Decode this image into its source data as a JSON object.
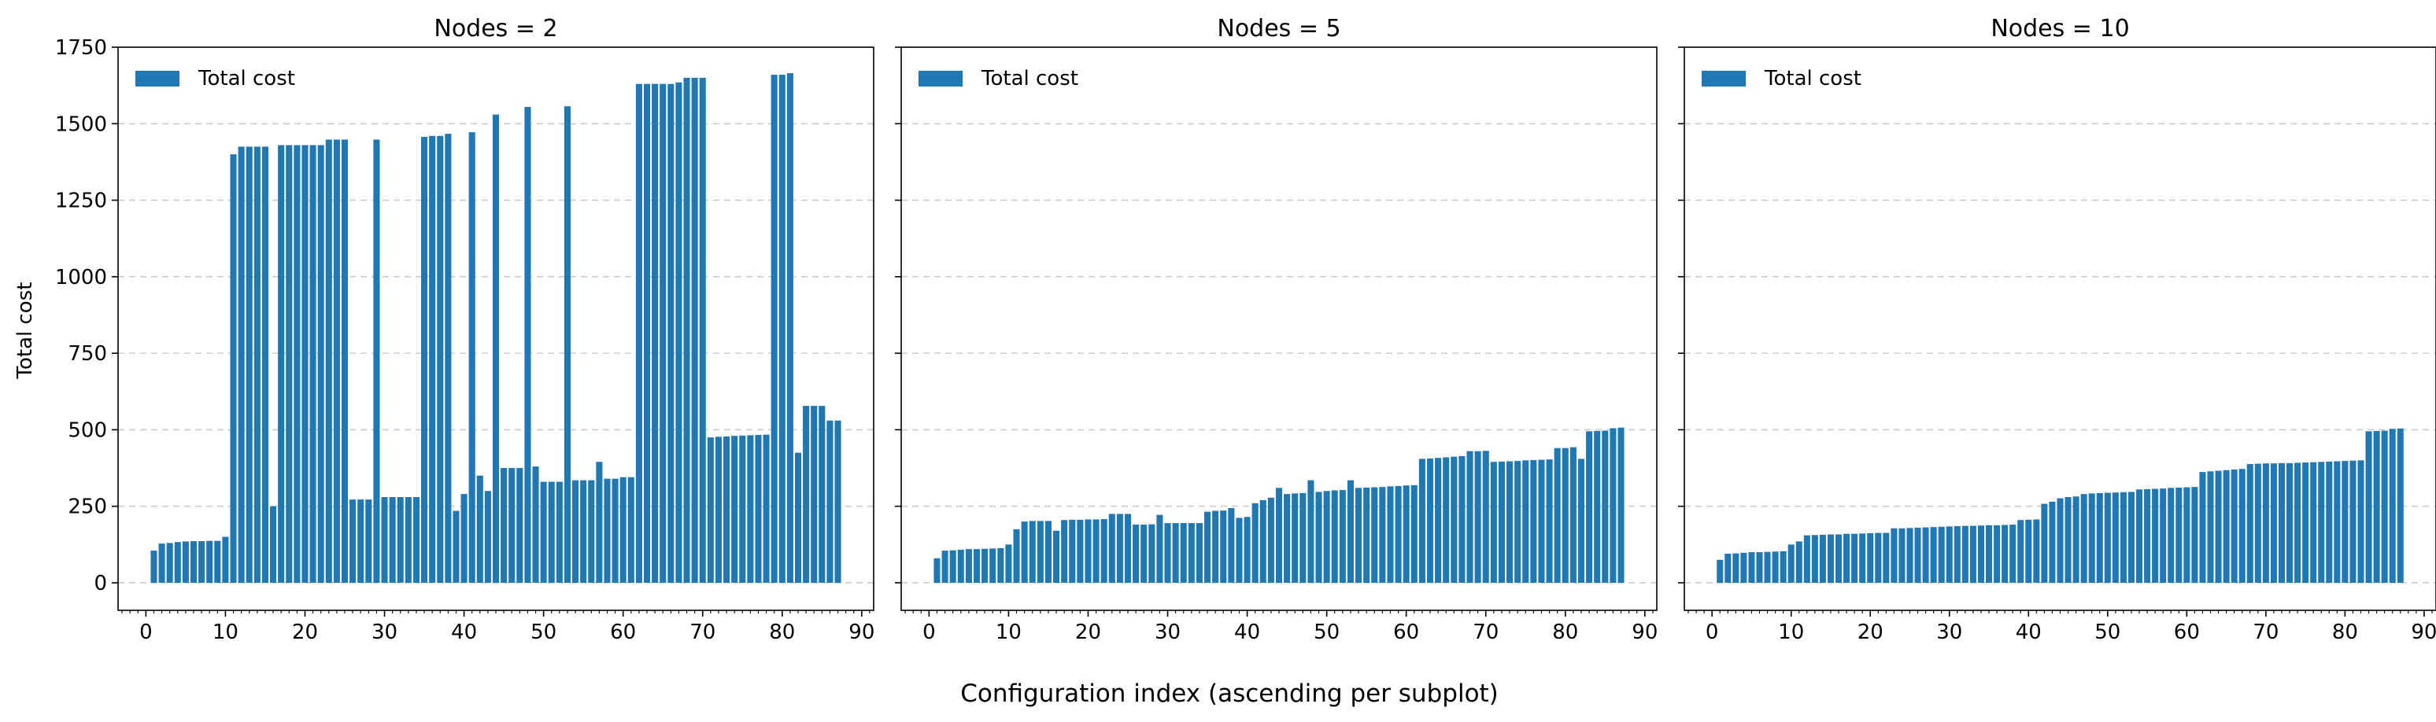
{
  "figure": {
    "xlabel": "Configuration index (ascending per subplot)",
    "ylabel": "Total cost",
    "bar_color": "#1f77b4",
    "grid_color": "#cccccc"
  },
  "chart_data": [
    {
      "type": "bar",
      "title": "Nodes = 2",
      "legend": "Total cost",
      "legend_position": "top-left",
      "grid": "y-dashed",
      "xlim": [
        -3.5,
        91.5
      ],
      "ylim": [
        -90,
        1750
      ],
      "x_ticks": [
        0,
        10,
        20,
        30,
        40,
        50,
        60,
        70,
        80,
        90
      ],
      "y_ticks": [
        0,
        250,
        500,
        750,
        1000,
        1250,
        1500,
        1750
      ],
      "x": [
        1,
        2,
        3,
        4,
        5,
        6,
        7,
        8,
        9,
        10,
        11,
        12,
        13,
        14,
        15,
        16,
        17,
        18,
        19,
        20,
        21,
        22,
        23,
        24,
        25,
        26,
        27,
        28,
        29,
        30,
        31,
        32,
        33,
        34,
        35,
        36,
        37,
        38,
        39,
        40,
        41,
        42,
        43,
        44,
        45,
        46,
        47,
        48,
        49,
        50,
        51,
        52,
        53,
        54,
        55,
        56,
        57,
        58,
        59,
        60,
        61,
        62,
        63,
        64,
        65,
        66,
        67,
        68,
        69,
        70,
        71,
        72,
        73,
        74,
        75,
        76,
        77,
        78,
        79,
        80,
        81,
        82,
        83,
        84,
        85,
        86,
        87
      ],
      "values": [
        105,
        128,
        130,
        133,
        135,
        136,
        136,
        137,
        137,
        150,
        1400,
        1425,
        1425,
        1425,
        1425,
        250,
        1430,
        1430,
        1430,
        1430,
        1430,
        1430,
        1448,
        1448,
        1448,
        272,
        272,
        272,
        1448,
        280,
        280,
        280,
        280,
        280,
        1457,
        1460,
        1460,
        1467,
        235,
        290,
        1472,
        350,
        300,
        1530,
        375,
        375,
        375,
        1555,
        380,
        330,
        330,
        330,
        1557,
        335,
        335,
        335,
        395,
        340,
        340,
        345,
        345,
        1630,
        1630,
        1630,
        1630,
        1630,
        1635,
        1650,
        1650,
        1650,
        475,
        477,
        478,
        480,
        481,
        482,
        483,
        484,
        1660,
        1660,
        1665,
        425,
        578,
        578,
        578,
        530,
        530
      ]
    },
    {
      "type": "bar",
      "title": "Nodes = 5",
      "legend": "Total cost",
      "legend_position": "top-left",
      "grid": "y-dashed",
      "xlim": [
        -3.5,
        91.5
      ],
      "ylim": [
        -90,
        1750
      ],
      "x_ticks": [
        0,
        10,
        20,
        30,
        40,
        50,
        60,
        70,
        80,
        90
      ],
      "x": [
        1,
        2,
        3,
        4,
        5,
        6,
        7,
        8,
        9,
        10,
        11,
        12,
        13,
        14,
        15,
        16,
        17,
        18,
        19,
        20,
        21,
        22,
        23,
        24,
        25,
        26,
        27,
        28,
        29,
        30,
        31,
        32,
        33,
        34,
        35,
        36,
        37,
        38,
        39,
        40,
        41,
        42,
        43,
        44,
        45,
        46,
        47,
        48,
        49,
        50,
        51,
        52,
        53,
        54,
        55,
        56,
        57,
        58,
        59,
        60,
        61,
        62,
        63,
        64,
        65,
        66,
        67,
        68,
        69,
        70,
        71,
        72,
        73,
        74,
        75,
        76,
        77,
        78,
        79,
        80,
        81,
        82,
        83,
        84,
        85,
        86,
        87
      ],
      "values": [
        80,
        105,
        106,
        108,
        110,
        110,
        111,
        112,
        113,
        125,
        175,
        200,
        202,
        202,
        202,
        170,
        205,
        206,
        206,
        207,
        207,
        208,
        225,
        225,
        225,
        190,
        190,
        191,
        222,
        195,
        195,
        195,
        195,
        195,
        232,
        235,
        236,
        244,
        212,
        215,
        260,
        270,
        278,
        310,
        290,
        292,
        293,
        335,
        297,
        300,
        302,
        303,
        335,
        310,
        311,
        312,
        313,
        315,
        316,
        318,
        319,
        405,
        406,
        408,
        410,
        412,
        414,
        430,
        430,
        431,
        395,
        396,
        397,
        398,
        400,
        401,
        402,
        403,
        440,
        440,
        443,
        405,
        495,
        496,
        497,
        505,
        507
      ]
    },
    {
      "type": "bar",
      "title": "Nodes = 10",
      "legend": "Total cost",
      "legend_position": "top-left",
      "grid": "y-dashed",
      "xlim": [
        -3.5,
        91.5
      ],
      "ylim": [
        -90,
        1750
      ],
      "x_ticks": [
        0,
        10,
        20,
        30,
        40,
        50,
        60,
        70,
        80,
        90
      ],
      "x": [
        1,
        2,
        3,
        4,
        5,
        6,
        7,
        8,
        9,
        10,
        11,
        12,
        13,
        14,
        15,
        16,
        17,
        18,
        19,
        20,
        21,
        22,
        23,
        24,
        25,
        26,
        27,
        28,
        29,
        30,
        31,
        32,
        33,
        34,
        35,
        36,
        37,
        38,
        39,
        40,
        41,
        42,
        43,
        44,
        45,
        46,
        47,
        48,
        49,
        50,
        51,
        52,
        53,
        54,
        55,
        56,
        57,
        58,
        59,
        60,
        61,
        62,
        63,
        64,
        65,
        66,
        67,
        68,
        69,
        70,
        71,
        72,
        73,
        74,
        75,
        76,
        77,
        78,
        79,
        80,
        81,
        82,
        83,
        84,
        85,
        86,
        87
      ],
      "values": [
        75,
        95,
        96,
        98,
        100,
        100,
        101,
        102,
        103,
        125,
        135,
        155,
        156,
        157,
        158,
        158,
        160,
        160,
        161,
        162,
        163,
        163,
        178,
        178,
        179,
        180,
        181,
        182,
        183,
        184,
        185,
        186,
        186,
        187,
        188,
        188,
        189,
        190,
        205,
        206,
        207,
        258,
        265,
        276,
        280,
        282,
        290,
        292,
        293,
        294,
        295,
        296,
        297,
        305,
        306,
        307,
        308,
        310,
        311,
        312,
        313,
        362,
        364,
        366,
        368,
        370,
        372,
        388,
        389,
        390,
        390,
        391,
        391,
        392,
        393,
        394,
        395,
        396,
        397,
        398,
        399,
        400,
        495,
        496,
        497,
        503,
        504
      ]
    }
  ]
}
